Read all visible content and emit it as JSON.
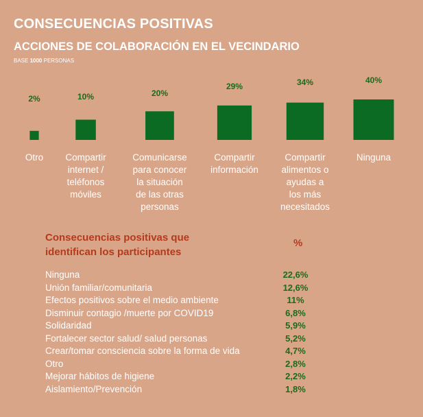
{
  "header": {
    "title": "CONSECUENCIAS POSITIVAS",
    "subtitle": "ACCIONES DE COLABORACIÓN EN EL VECINDARIO",
    "base_prefix": "BASE",
    "base_number": "1000",
    "base_suffix": "PERSONAS"
  },
  "colors": {
    "background": "#d8a588",
    "bar": "#0b6b23",
    "bar_value": "#1a6b1a",
    "table_header": "#b53a1d"
  },
  "chart_data": {
    "type": "bar",
    "categories": [
      "Otro",
      "Compartir internet / teléfonos móviles",
      "Comunicarse para conocer la situación de las otras personas",
      "Compartir información",
      "Compartir alimentos o ayudas a los más necesitados",
      "Ninguna"
    ],
    "category_lines": [
      [
        "Otro"
      ],
      [
        "Compartir",
        "internet /",
        "teléfonos",
        "móviles"
      ],
      [
        "Comunicarse",
        "para conocer",
        "la situación",
        "de las otras",
        "personas"
      ],
      [
        "Compartir",
        "información"
      ],
      [
        "Compartir",
        "alimentos o",
        "ayudas a",
        "los más",
        "necesitados"
      ],
      [
        "Ninguna"
      ]
    ],
    "values": [
      2,
      10,
      20,
      29,
      34,
      40
    ],
    "value_labels": [
      "2%",
      "10%",
      "20%",
      "29%",
      "34%",
      "40%"
    ],
    "unit": "%"
  },
  "table": {
    "header_line1": "Consecuencias positivas que",
    "header_line2": "identifican los participantes",
    "pct_header": "%",
    "rows": [
      {
        "label": "Ninguna",
        "value": "22,6%"
      },
      {
        "label": "Unión familiar/comunitaria",
        "value": "12,6%"
      },
      {
        "label": "Efectos positivos sobre el medio ambiente",
        "value": "11%"
      },
      {
        "label": "Disminuir contagio /muerte por COVID19",
        "value": "6,8%"
      },
      {
        "label": "Solidaridad",
        "value": "5,9%"
      },
      {
        "label": "Fortalecer sector salud/ salud personas",
        "value": "5,2%"
      },
      {
        "label": "Crear/tomar consciencia sobre la forma de vida",
        "value": "4,7%"
      },
      {
        "label": "Otro",
        "value": "2,8%"
      },
      {
        "label": "Mejorar hábitos de higiene",
        "value": "2,2%"
      },
      {
        "label": "Aislamiento/Prevención",
        "value": "1,8%"
      }
    ]
  }
}
